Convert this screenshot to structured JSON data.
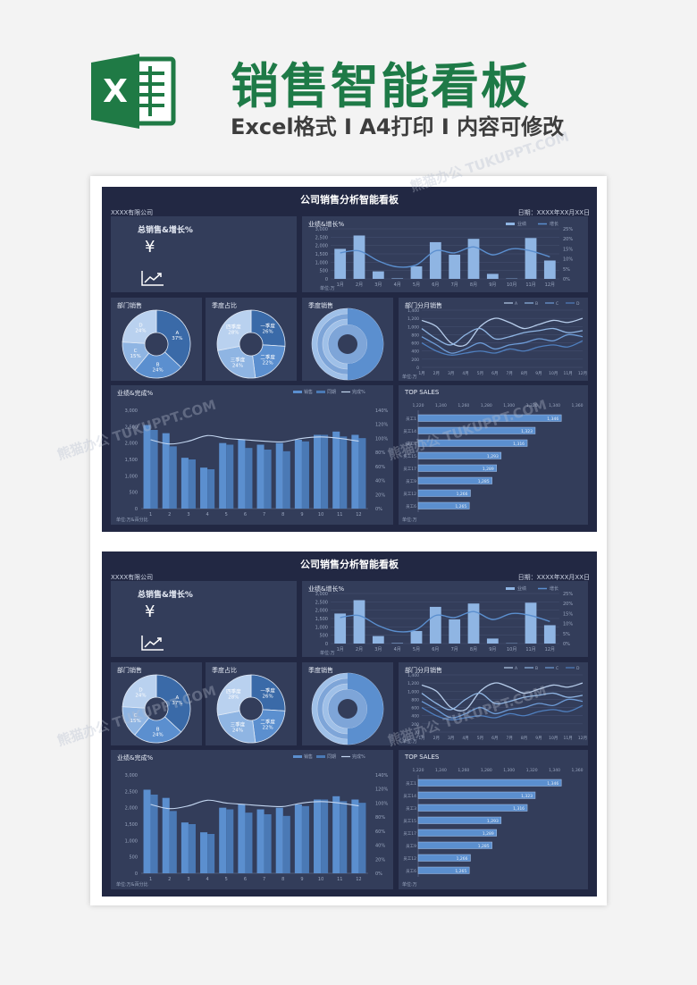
{
  "header": {
    "title": "销售智能看板",
    "subtitle": "Excel格式 I A4打印 I 内容可修改",
    "logo_letter": "X",
    "logo_color": "#1f7a45"
  },
  "watermark": "熊猫办公 TUKUPPT.COM",
  "dashboard": {
    "title": "公司销售分析智能看板",
    "company": "XXXX有限公司",
    "date_label": "日期：XXXX年XX月XX日",
    "total_panel": {
      "title": "总销售&增长%",
      "currency_symbol": "¥",
      "trend_icon": "trend-up-icon"
    },
    "perf_growth_title": "业绩&增长%",
    "perf_growth_legend": [
      "业绩",
      "增长"
    ],
    "dept_sales_title": "部门销售",
    "season_share_title": "季度占比",
    "season_sales_title": "季度销售",
    "dept_monthly_title": "部门分月销售",
    "dept_monthly_legend": [
      "A",
      "B",
      "C",
      "D"
    ],
    "completion_title": "业绩&完成%",
    "completion_legend": [
      "销售",
      "同期",
      "完成%"
    ],
    "completion_unit": "单位:万&百分比",
    "top_sales_title": "TOP SALES",
    "top_unit": "单位:万",
    "unit_label": "单位:万",
    "colors": {
      "bg": "#222843",
      "panel": "#333d5a",
      "accent": "#5b8fcf",
      "light": "#8fb5e3"
    }
  },
  "chart_data": [
    {
      "type": "bar",
      "title": "业绩&增长%",
      "categories": [
        "1月",
        "2月",
        "3月",
        "4月",
        "5月",
        "6月",
        "7月",
        "8月",
        "9月",
        "10月",
        "11月",
        "12月"
      ],
      "series": [
        {
          "name": "业绩",
          "values": [
            1800,
            2600,
            450,
            30,
            750,
            2200,
            1450,
            2400,
            300,
            20,
            2450,
            1100
          ]
        },
        {
          "name": "增长",
          "values": [
            13,
            14,
            9,
            6,
            7,
            14,
            13,
            16,
            12,
            15,
            14,
            11
          ]
        }
      ],
      "ylim": [
        0,
        3000
      ],
      "y_ticks": [
        "0",
        "500",
        "1,000",
        "1,500",
        "2,000",
        "2,500",
        "3,000"
      ],
      "y2_ticks": [
        "0%",
        "5%",
        "10%",
        "15%",
        "20%",
        "25%"
      ]
    },
    {
      "type": "pie",
      "title": "部门销售",
      "labels": [
        "A",
        "B",
        "C",
        "D"
      ],
      "values": [
        37,
        24,
        15,
        24
      ]
    },
    {
      "type": "pie",
      "title": "季度占比",
      "labels": [
        "一季度",
        "二季度",
        "三季度",
        "四季度"
      ],
      "values": [
        26,
        22,
        24,
        28
      ]
    },
    {
      "type": "line",
      "title": "部门分月销售",
      "x": [
        "1月",
        "2月",
        "3月",
        "4月",
        "5月",
        "6月",
        "7月",
        "8月",
        "9月",
        "10月",
        "11月",
        "12月"
      ],
      "series": [
        {
          "name": "A",
          "values": [
            1150,
            1000,
            600,
            550,
            1000,
            1200,
            1100,
            950,
            1050,
            1150,
            1100,
            1200
          ]
        },
        {
          "name": "B",
          "values": [
            950,
            700,
            550,
            800,
            950,
            700,
            750,
            850,
            900,
            950,
            850,
            900
          ]
        },
        {
          "name": "C",
          "values": [
            750,
            550,
            350,
            450,
            600,
            450,
            550,
            600,
            700,
            650,
            800,
            750
          ]
        },
        {
          "name": "D",
          "values": [
            600,
            400,
            300,
            350,
            400,
            350,
            450,
            400,
            500,
            550,
            500,
            650
          ]
        }
      ],
      "ylim": [
        0,
        1400
      ],
      "y_ticks": [
        "0",
        "200",
        "400",
        "600",
        "800",
        "1,000",
        "1,200",
        "1,400"
      ]
    },
    {
      "type": "bar",
      "title": "业绩&完成%",
      "categories": [
        "1",
        "2",
        "3",
        "4",
        "5",
        "6",
        "7",
        "8",
        "9",
        "10",
        "11",
        "12"
      ],
      "series": [
        {
          "name": "销售",
          "values": [
            2550,
            2300,
            1550,
            1250,
            2000,
            2100,
            1950,
            2000,
            2100,
            2250,
            2350,
            2250
          ]
        },
        {
          "name": "同期",
          "values": [
            2400,
            1900,
            1500,
            1200,
            1950,
            1850,
            1800,
            1750,
            2050,
            2250,
            2200,
            2150
          ]
        },
        {
          "name": "完成%",
          "values": [
            98,
            92,
            96,
            104,
            100,
            98,
            96,
            95,
            100,
            102,
            100,
            96
          ]
        }
      ],
      "ylim": [
        0,
        3000
      ],
      "y_ticks": [
        "0",
        "500",
        "1,000",
        "1,500",
        "2,000",
        "2,500",
        "3,000"
      ],
      "y2_ticks": [
        "0%",
        "20%",
        "40%",
        "60%",
        "80%",
        "100%",
        "120%",
        "140%"
      ]
    },
    {
      "type": "bar",
      "title": "TOP SALES",
      "orientation": "horizontal",
      "categories": [
        "员工1",
        "员工14",
        "员工3",
        "员工15",
        "员工17",
        "员工9",
        "员工12",
        "员工6"
      ],
      "values": [
        1346,
        1323,
        1316,
        1293,
        1289,
        1285,
        1266,
        1265
      ],
      "value_labels": [
        "1,346",
        "1,323",
        "1,316",
        "1,293",
        "1,289",
        "1,285",
        "1,266",
        "1,265"
      ],
      "xlim": [
        1220,
        1360
      ],
      "x_ticks": [
        "1,220",
        "1,240",
        "1,260",
        "1,280",
        "1,300",
        "1,320",
        "1,340",
        "1,360"
      ]
    }
  ]
}
